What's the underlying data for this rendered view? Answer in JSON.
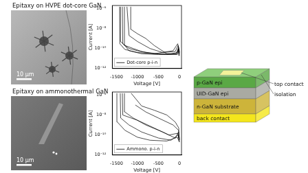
{
  "panels": [
    {
      "title": "Epitaxy on HVPE dot-core GaN",
      "scale_bar": "10 μm"
    },
    {
      "title": "Epitaxy on ammonothermal GaN",
      "scale_bar": "10 μm"
    }
  ],
  "chart_data": [
    {
      "type": "line",
      "x_label": "Voltage [V]",
      "y_label": "Current [A]",
      "log": "y",
      "grid": false,
      "legend": "lower left",
      "xlim": [
        -1600,
        50
      ],
      "xticks": [
        -1500,
        -1000,
        -500,
        0
      ],
      "ylim": [
        1e-12,
        2e-06
      ],
      "yticks": [
        {
          "value": 1e-12,
          "label": "10⁻¹²"
        },
        {
          "value": 1e-10,
          "label": "10⁻¹⁰"
        },
        {
          "value": 1e-08,
          "label": "10⁻⁸"
        },
        {
          "value": 1e-06,
          "label": "10⁻⁶"
        }
      ],
      "series": [
        {
          "name": "Dot-core p-i-n",
          "color": "#000000",
          "x": [
            0,
            -20,
            -50,
            -200,
            -500,
            -800,
            -1000,
            -1200,
            -1350,
            -1360
          ],
          "values": [
            3e-11,
            1.5e-10,
            4e-11,
            3e-11,
            3e-11,
            4e-11,
            6e-11,
            1e-10,
            3e-10,
            1.5e-06
          ]
        },
        {
          "color": "#000000",
          "x": [
            0,
            -15,
            -60,
            -300,
            -600,
            -900,
            -1100,
            -1300,
            -1400,
            -1405
          ],
          "values": [
            2e-11,
            8e-11,
            3e-11,
            2.5e-11,
            3e-11,
            5e-11,
            1e-10,
            2e-10,
            5e-10,
            1.5e-06
          ]
        },
        {
          "color": "#000000",
          "x": [
            0,
            -30,
            -100,
            -400,
            -700,
            -1000,
            -1200,
            -1250
          ],
          "values": [
            4e-11,
            2e-10,
            5e-11,
            4e-11,
            1e-10,
            5e-10,
            2e-09,
            1.5e-06
          ]
        },
        {
          "color": "#000000",
          "x": [
            0,
            -25,
            -80,
            -300,
            -600,
            -800,
            -1000,
            -1150,
            -1160
          ],
          "values": [
            2e-11,
            1e-10,
            3e-11,
            3e-11,
            2e-10,
            1e-09,
            3e-09,
            8e-09,
            1.5e-06
          ]
        },
        {
          "color": "#000000",
          "x": [
            0,
            -10,
            -50,
            -500,
            -900,
            -1200,
            -1300,
            -1310
          ],
          "values": [
            3e-11,
            6e-11,
            2.5e-11,
            2.5e-11,
            3e-11,
            6e-11,
            2e-10,
            1.5e-06
          ]
        },
        {
          "color": "#000000",
          "x": [
            0,
            -40,
            -150,
            -600,
            -1000,
            -1300,
            -1420,
            -1425
          ],
          "values": [
            5e-11,
            3e-10,
            6e-11,
            3e-11,
            4e-11,
            8e-11,
            3e-10,
            1.5e-06
          ]
        }
      ]
    },
    {
      "type": "line",
      "x_label": "Voltage [V]",
      "y_label": "Current [A]",
      "log": "y",
      "grid": false,
      "legend": "lower left",
      "xlim": [
        -1600,
        50
      ],
      "xticks": [
        -1500,
        -1000,
        -500,
        0
      ],
      "ylim": [
        1e-12,
        2e-06
      ],
      "yticks": [
        {
          "value": 1e-12,
          "label": "10⁻¹²"
        },
        {
          "value": 1e-10,
          "label": "10⁻¹⁰"
        },
        {
          "value": 1e-08,
          "label": "10⁻⁸"
        },
        {
          "value": 1e-06,
          "label": "10⁻⁶"
        }
      ],
      "series": [
        {
          "name": "Ammono. p-i-n",
          "color": "#000000",
          "x": [
            0,
            -20,
            -100,
            -400,
            -800,
            -1100,
            -1300,
            -1310
          ],
          "values": [
            3e-11,
            2e-10,
            5e-11,
            2e-10,
            1e-09,
            5e-09,
            2e-08,
            1.5e-06
          ]
        },
        {
          "color": "#000000",
          "x": [
            0,
            -30,
            -200,
            -500,
            -900,
            -1200,
            -1400,
            -1410
          ],
          "values": [
            2e-11,
            1e-10,
            3e-11,
            5e-11,
            2e-10,
            1e-09,
            5e-09,
            1.5e-06
          ]
        },
        {
          "color": "#000000",
          "x": [
            0,
            -15,
            -100,
            -300,
            -600,
            -900,
            -1150
          ],
          "values": [
            5e-11,
            5e-10,
            2e-09,
            1e-08,
            3e-08,
            8e-08,
            1.5e-06
          ]
        },
        {
          "color": "#000000",
          "x": [
            0,
            -50,
            -300,
            -700,
            -1000,
            -1300,
            -1480,
            -1490
          ],
          "values": [
            2e-11,
            6e-11,
            2.5e-11,
            3e-11,
            6e-11,
            3e-10,
            2e-09,
            1.5e-06
          ]
        },
        {
          "color": "#000000",
          "x": [
            0,
            -20,
            -150,
            -500,
            -800,
            -1050
          ],
          "values": [
            4e-11,
            3e-10,
            1e-09,
            5e-09,
            2e-08,
            1e-07
          ]
        },
        {
          "color": "#000000",
          "x": [
            0,
            -40,
            -250,
            -600,
            -1000,
            -1350,
            -1360
          ],
          "values": [
            3e-11,
            1.5e-10,
            1e-10,
            5e-10,
            3e-09,
            1e-08,
            1.5e-06
          ]
        }
      ]
    }
  ],
  "diagram": {
    "top_contact": {
      "label": "top contact",
      "color": "#f3f29a"
    },
    "isolation": {
      "label": "isolation",
      "color": "#8fcf7c"
    },
    "layers": [
      {
        "label": "p-GaN epi",
        "color": "#5aa845"
      },
      {
        "label": "UID-GaN epi",
        "color": "#a9aaa2"
      },
      {
        "label": "n-GaN substrate",
        "color": "#cdb43a"
      },
      {
        "label": "back contact",
        "color": "#f4e61c"
      }
    ]
  }
}
